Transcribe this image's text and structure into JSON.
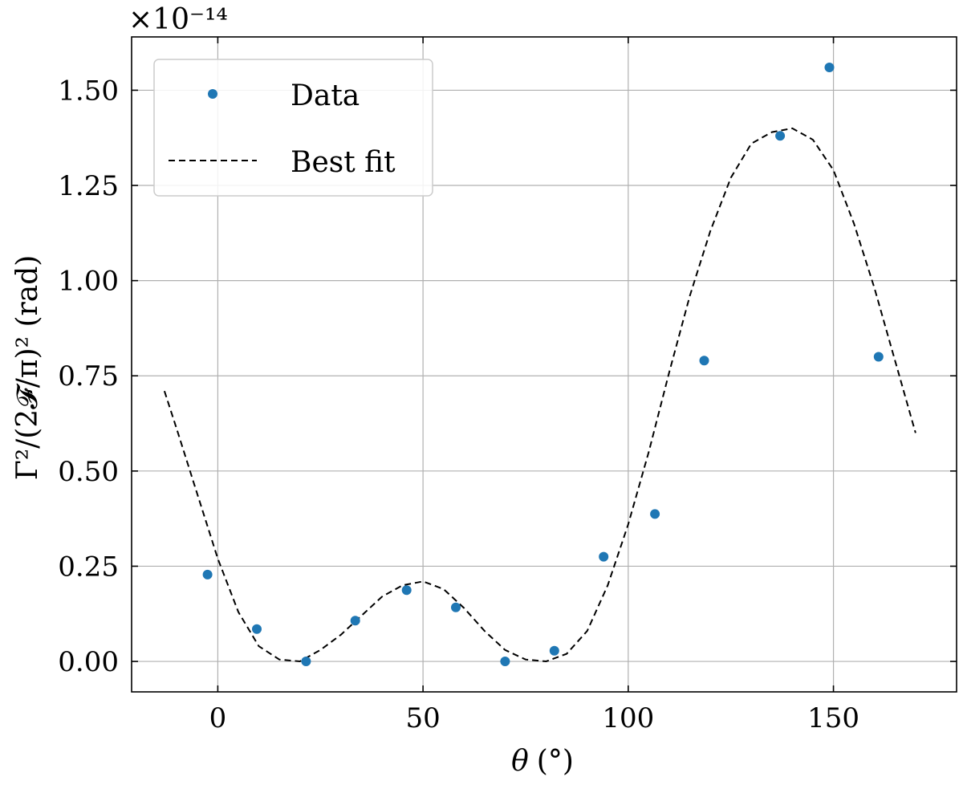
{
  "chart_data": {
    "type": "scatter",
    "xlabel_symbol": "θ",
    "xlabel_unit": "(°)",
    "ylabel": "Γ²/(2𝓕/π)² (rad)",
    "y_multiplier": "×10⁻¹⁴",
    "xlim": [
      -21,
      180
    ],
    "ylim": [
      -0.08,
      1.64
    ],
    "xticks": [
      0,
      50,
      100,
      150
    ],
    "yticks": [
      0.0,
      0.25,
      0.5,
      0.75,
      1.0,
      1.25,
      1.5
    ],
    "xtick_labels": [
      "0",
      "50",
      "100",
      "150"
    ],
    "ytick_labels": [
      "0.00",
      "0.25",
      "0.50",
      "0.75",
      "1.00",
      "1.25",
      "1.50"
    ],
    "grid": true,
    "legend_position": "top-left",
    "series": [
      {
        "name": "Data",
        "kind": "scatter",
        "color": "#1f77b4",
        "x": [
          -2.5,
          9.5,
          21.5,
          33.5,
          46,
          58,
          70,
          82,
          94,
          106.5,
          118.5,
          137,
          149,
          161
        ],
        "y": [
          0.228,
          0.085,
          0.0,
          0.107,
          0.187,
          0.142,
          0.0,
          0.028,
          0.275,
          0.387,
          0.79,
          1.38,
          1.56,
          0.8
        ]
      },
      {
        "name": "Best fit",
        "kind": "line",
        "style": "dashed",
        "color": "#000000",
        "x": [
          -13,
          -10,
          -5,
          0,
          5,
          10,
          15,
          20,
          25,
          30,
          35,
          40,
          45,
          50,
          55,
          60,
          65,
          70,
          75,
          80,
          85,
          90,
          95,
          100,
          105,
          110,
          115,
          120,
          125,
          130,
          135,
          140,
          145,
          150,
          155,
          160,
          165,
          170
        ],
        "y": [
          0.71,
          0.61,
          0.44,
          0.27,
          0.13,
          0.04,
          0.005,
          0.0,
          0.03,
          0.07,
          0.12,
          0.17,
          0.2,
          0.21,
          0.19,
          0.14,
          0.08,
          0.03,
          0.005,
          0.0,
          0.02,
          0.08,
          0.2,
          0.36,
          0.55,
          0.76,
          0.96,
          1.13,
          1.27,
          1.36,
          1.39,
          1.4,
          1.37,
          1.29,
          1.15,
          0.98,
          0.79,
          0.6
        ]
      }
    ]
  }
}
